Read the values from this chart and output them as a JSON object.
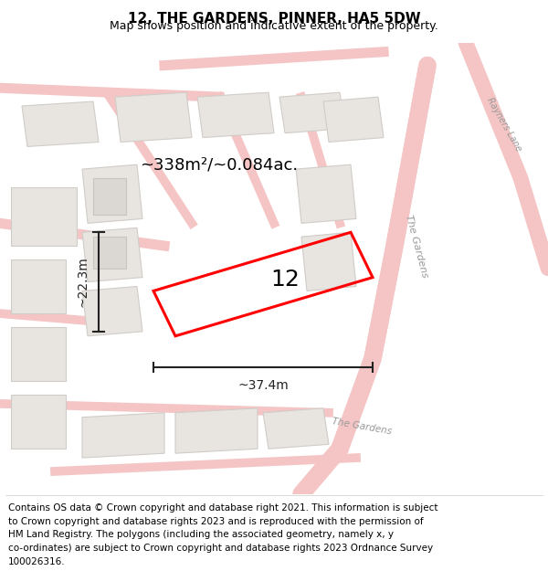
{
  "title": "12, THE GARDENS, PINNER, HA5 5DW",
  "subtitle": "Map shows position and indicative extent of the property.",
  "footer": "Contains OS data © Crown copyright and database right 2021. This information is subject to Crown copyright and database rights 2023 and is reproduced with the permission of HM Land Registry. The polygons (including the associated geometry, namely x, y co-ordinates) are subject to Crown copyright and database rights 2023 Ordnance Survey 100026316.",
  "area_label": "~338m²/~0.084ac.",
  "width_label": "~37.4m",
  "height_label": "~22.3m",
  "plot_number": "12",
  "background_color": "#f0eeeb",
  "map_background": "#f5f3f0",
  "road_color": "#f5c5c5",
  "road_outline": "#e8a0a0",
  "building_color": "#e8e4e0",
  "building_outline": "#d0ccc8",
  "plot_color": "#ff0000",
  "plot_fill": "none",
  "dim_color": "#222222",
  "title_fontsize": 11,
  "subtitle_fontsize": 9,
  "footer_fontsize": 7.5,
  "label_fontsize": 13,
  "number_fontsize": 18
}
